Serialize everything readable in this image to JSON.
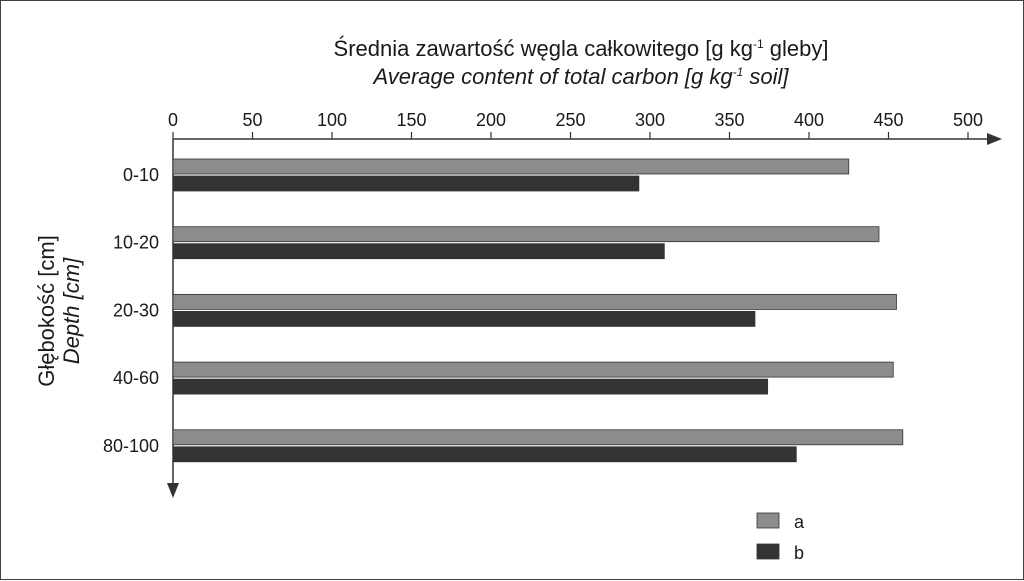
{
  "chart_data": {
    "type": "bar",
    "orientation": "horizontal",
    "title": {
      "pl_before": "Średnia zawartość węgla całkowitego [g kg",
      "pl_sup": "-1",
      "pl_after": " gleby]",
      "en_before": "Average content of total carbon [g kg",
      "en_sup": "-1",
      "en_after": " soil]"
    },
    "ylabel": {
      "pl": "Głębokość [cm]",
      "en": "Depth [cm]"
    },
    "categories": [
      "0-10",
      "10-20",
      "20-30",
      "40-60",
      "80-100"
    ],
    "series": [
      {
        "name": "a",
        "color": "#8c8c8c",
        "values": [
          425,
          444,
          455,
          453,
          459
        ]
      },
      {
        "name": "b",
        "color": "#333333",
        "values": [
          293,
          309,
          366,
          374,
          392
        ]
      }
    ],
    "xlim": [
      0,
      500
    ],
    "xticks": [
      0,
      50,
      100,
      150,
      200,
      250,
      300,
      350,
      400,
      450,
      500
    ],
    "x_axis_position": "top",
    "grid": false,
    "legend_position": "bottom-right"
  }
}
